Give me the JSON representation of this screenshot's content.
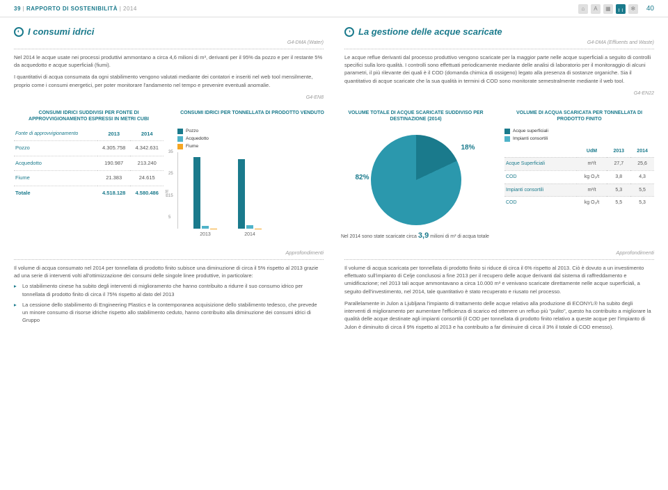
{
  "header": {
    "left_prefix": "39",
    "left_title": "RAPPORTO DI SOSTENIBILITÀ",
    "left_year": "2014",
    "page_right": "40",
    "icons": [
      "⌂",
      "A",
      "▦",
      "╷╷",
      "✻"
    ]
  },
  "colors": {
    "teal": "#1a7a8c",
    "teal_light": "#4fb3c9",
    "teal_mid": "#2b98ad",
    "amber": "#f5a623",
    "grey": "#e0e0e0"
  },
  "left": {
    "title": "I consumi idrici",
    "gri": "G4-DMA (Water)",
    "p1": "Nel 2014 le acque usate nei processi produttivi ammontano a circa 4,6 milioni di m³, derivanti per il 95% da pozzo e per il restante 5% da acquedotto e acque superficiali (fiumi).",
    "p2": "I quantitativi di acqua consumata da ogni stabilimento vengono valutati mediante dei contatori e inseriti nel web tool mensilmente, proprio come i consumi energetici, per poter monitorare l'andamento nel tempo e prevenire eventuali anomalie.",
    "en": "G4-EN8"
  },
  "right": {
    "title": "La gestione delle acque scaricate",
    "gri": "G4-DMA (Effluents and Waste)",
    "p1": "Le acque reflue derivanti dal processo produttivo vengono scaricate per la maggior parte nelle acque superficiali a seguito di controlli specifici sulla loro qualità. I controlli sono effettuati periodicamente mediante delle analisi di laboratorio per il monitoraggio di alcuni parametri, il più rilevante dei quali è il COD (domanda chimica di ossigeno) legato alla presenza di sostanze organiche. Sia il quantitativo di acque scaricate che la sua qualità in termini di COD sono monitorate semestralmente mediante il web tool.",
    "en": "G4-EN22"
  },
  "subheads": [
    "CONSUMI IDRICI SUDDIVISI PER FONTE DI APPROVVIGIONAMENTO ESPRESSI IN METRI CUBI",
    "CONSUMI IDRICI PER TONNELLATA DI PRODOTTO VENDUTO",
    "VOLUME TOTALE DI ACQUE SCARICATE SUDDIVISO PER DESTINAZIONE (2014)",
    "VOLUME DI ACQUA SCARICATA PER TONNELLATA DI PRODOTTO FINITO"
  ],
  "table1": {
    "head": [
      "Fonte di approvvigionamento",
      "2013",
      "2014"
    ],
    "rows": [
      [
        "Pozzo",
        "4.305.758",
        "4.342.631"
      ],
      [
        "Acquedotto",
        "190.987",
        "213.240"
      ],
      [
        "Fiume",
        "21.383",
        "24.615"
      ],
      [
        "Totale",
        "4.518.128",
        "4.580.486"
      ]
    ]
  },
  "barchart": {
    "legend": [
      "Pozzo",
      "Acquedotto",
      "Fiume"
    ],
    "legend_colors": [
      "#1a7a8c",
      "#4fb3c9",
      "#f5a623"
    ],
    "ylabel": "m³/t",
    "yticks": [
      5,
      15,
      25,
      35
    ],
    "years": [
      "2013",
      "2014"
    ],
    "series": {
      "2013": [
        33,
        1.5,
        0.2
      ],
      "2014": [
        32,
        1.6,
        0.2
      ]
    },
    "ymax": 35
  },
  "pie": {
    "slices": [
      {
        "label": "82%",
        "value": 82,
        "color": "#2b98ad"
      },
      {
        "label": "18%",
        "value": 18,
        "color": "#1a7a8c"
      }
    ],
    "note_pre": "Nel 2014 sono state scaricate circa ",
    "note_big": "3,9",
    "note_post": " milioni di m³ di acqua totale"
  },
  "table2": {
    "legend": [
      "Acque superficiali",
      "Impianti consortili"
    ],
    "legend_colors": [
      "#1a7a8c",
      "#4fb3c9"
    ],
    "head": [
      "",
      "UdM",
      "2013",
      "2014"
    ],
    "groups": [
      {
        "name": "Acque Superficiali",
        "rows": [
          [
            "",
            "m³/t",
            "27,7",
            "25,6"
          ],
          [
            "COD",
            "kg O₂/t",
            "3,8",
            "4,3"
          ]
        ]
      },
      {
        "name": "Impianti consortili",
        "rows": [
          [
            "",
            "m³/t",
            "5,3",
            "5,5"
          ],
          [
            "COD",
            "kg O₂/t",
            "5,5",
            "5,3"
          ]
        ]
      }
    ]
  },
  "appr": {
    "title": "Approfondimenti",
    "left_p": "Il volume di acqua consumato nel 2014 per tonnellata di prodotto finito subisce una diminuzione di circa il 5% rispetto al 2013 grazie ad una serie di interventi volti all'ottimizzazione dei consumi delle singole linee produttive, in particolare:",
    "left_b1": "Lo stabilimento cinese ha subito degli interventi di miglioramento che hanno contribuito a ridurre il suo consumo idrico per tonnellata di prodotto finito di circa il 75% rispetto al dato del 2013",
    "left_b2": "La cessione dello stabilimento di Engineering Plastics e la contemporanea acquisizione dello stabilimento tedesco, che prevede un minore consumo di risorse idriche rispetto allo stabilimento ceduto, hanno contribuito alla diminuzione dei consumi idrici di Gruppo",
    "right_p1": "Il volume di acqua scaricata per tonnellata di prodotto finito si riduce di circa il 6% rispetto al 2013. Ciò è dovuto a un investimento effettuato sull'impianto di Celje conclusosi a fine 2013 per il recupero delle acque derivanti dal sistema di raffreddamento e umidificazione; nel 2013 tali acque ammontavano a circa 10.000 m³ e venivano scaricate direttamente nelle acque superficiali, a seguito dell'investimento, nel 2014, tale quantitativo è stato recuperato e riusato nel processo.",
    "right_p2": "Parallelamente in Julon a Ljubljana l'impianto di trattamento delle acque relativo alla produzione di ECONYL® ha subito degli interventi di miglioramento per aumentare l'efficienza di scarico ed ottenere un refluo più \"pulito\", questo ha contribuito a migliorare la qualità delle acque destinate agli impianti consortili (il COD per tonnellata di prodotto finito relativo a queste acque per l'impianto di Julon è diminuito di circa il 9% rispetto al 2013 e ha contribuito a far diminuire di circa il 3% il totale di COD emesso)."
  }
}
